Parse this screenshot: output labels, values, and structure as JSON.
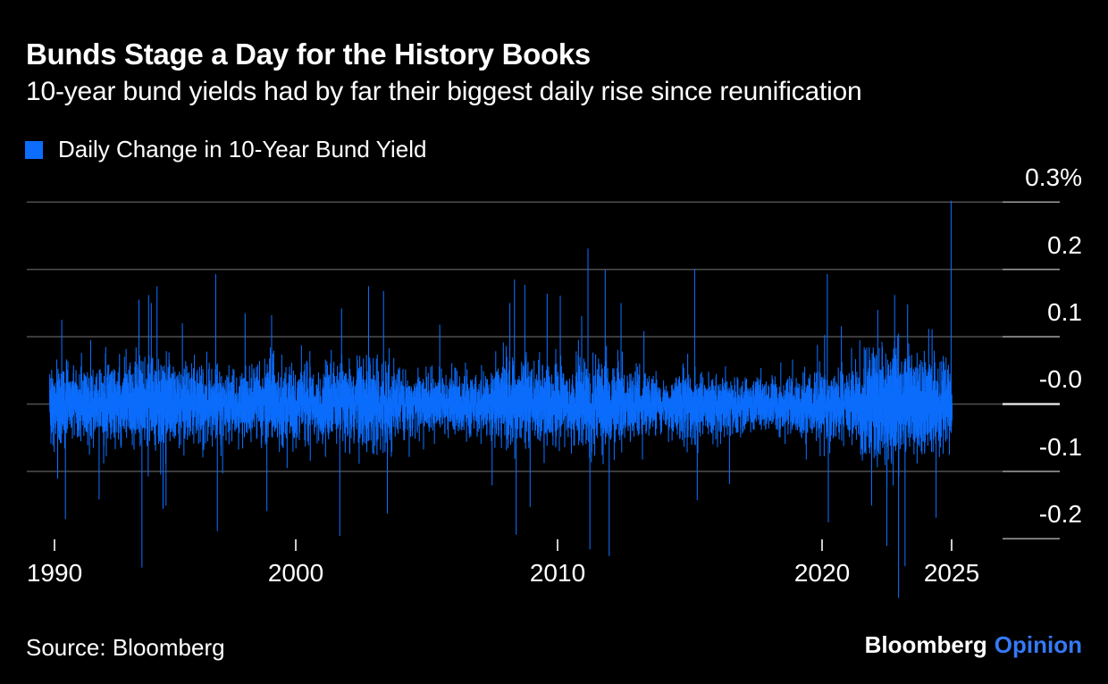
{
  "header": {
    "title": "Bunds Stage a Day for the History Books",
    "subtitle": "10-year bund yields had by far their biggest daily rise since reunification"
  },
  "legend": {
    "label": "Daily Change in 10-Year Bund Yield",
    "swatch_color": "#0c6dfc"
  },
  "footer": {
    "source": "Source: Bloomberg",
    "brand": "Bloomberg",
    "brand_suffix": "Opinion",
    "brand_suffix_color": "#3579f6"
  },
  "chart_data": {
    "type": "bar",
    "title": "Bunds Stage a Day for the History Books",
    "subtitle": "10-year bund yields had by far their biggest daily rise since reunification",
    "series": [
      {
        "name": "Daily Change in 10-Year Bund Yield",
        "color": "#0c6dfc"
      }
    ],
    "unit": "%",
    "ylim": [
      -0.32,
      0.34
    ],
    "y_tick_labels": [
      "0.3%",
      "0.2",
      "0.1",
      "-0.0",
      "-0.1",
      "-0.2"
    ],
    "y_tick_values": [
      0.3,
      0.2,
      0.1,
      0.0,
      -0.1,
      -0.2
    ],
    "y_gridline_values": [
      0.3,
      0.2,
      0.1,
      0.0,
      -0.1
    ],
    "x_ticks": [
      {
        "label": "1990",
        "year": 1990
      },
      {
        "label": "2000",
        "year": 2000
      },
      {
        "label": "2010",
        "year": 2010
      },
      {
        "label": "2020",
        "year": 2020
      },
      {
        "label": "2025",
        "year": 2025
      }
    ],
    "x_range_years": [
      1989.8,
      2025.02
    ],
    "points_per_year": 252,
    "seed": 911,
    "grid_on": true,
    "legend_position": "top-left",
    "max_move": {
      "year": 2025,
      "value": 0.302,
      "note": "biggest daily rise since reunification"
    },
    "min_move": {
      "year": 2023,
      "value": -0.287
    },
    "volatility_by_year": [
      [
        1990,
        0.028
      ],
      [
        1991,
        0.022
      ],
      [
        1992,
        0.026
      ],
      [
        1993,
        0.028
      ],
      [
        1994,
        0.033
      ],
      [
        1995,
        0.028
      ],
      [
        1996,
        0.026
      ],
      [
        1997,
        0.022
      ],
      [
        1998,
        0.024
      ],
      [
        1999,
        0.027
      ],
      [
        2000,
        0.025
      ],
      [
        2001,
        0.028
      ],
      [
        2002,
        0.03
      ],
      [
        2003,
        0.032
      ],
      [
        2004,
        0.024
      ],
      [
        2005,
        0.02
      ],
      [
        2006,
        0.021
      ],
      [
        2007,
        0.023
      ],
      [
        2008,
        0.034
      ],
      [
        2009,
        0.032
      ],
      [
        2010,
        0.028
      ],
      [
        2011,
        0.033
      ],
      [
        2012,
        0.03
      ],
      [
        2013,
        0.023
      ],
      [
        2014,
        0.019
      ],
      [
        2015,
        0.027
      ],
      [
        2016,
        0.022
      ],
      [
        2017,
        0.02
      ],
      [
        2018,
        0.019
      ],
      [
        2019,
        0.021
      ],
      [
        2020,
        0.027
      ],
      [
        2021,
        0.022
      ],
      [
        2022,
        0.045
      ],
      [
        2023,
        0.042
      ],
      [
        2024,
        0.034
      ],
      [
        2025,
        0.03
      ]
    ],
    "notable_moves": [
      [
        1990.3,
        0.125
      ],
      [
        1990.45,
        -0.17
      ],
      [
        1991.5,
        0.095
      ],
      [
        1993.5,
        0.155
      ],
      [
        1993.62,
        -0.242
      ],
      [
        1993.9,
        0.162
      ],
      [
        1994.25,
        0.175
      ],
      [
        1994.5,
        -0.155
      ],
      [
        1995.3,
        0.12
      ],
      [
        1996.68,
        0.193
      ],
      [
        1996.75,
        -0.188
      ],
      [
        1997.9,
        0.135
      ],
      [
        1998.8,
        -0.158
      ],
      [
        1999.0,
        0.132
      ],
      [
        2001.68,
        -0.195
      ],
      [
        2001.75,
        0.142
      ],
      [
        2002.78,
        0.175
      ],
      [
        2003.35,
        0.168
      ],
      [
        2003.5,
        -0.162
      ],
      [
        2005.5,
        0.118
      ],
      [
        2007.5,
        -0.12
      ],
      [
        2008.35,
        0.185
      ],
      [
        2008.42,
        -0.193
      ],
      [
        2008.75,
        0.177
      ],
      [
        2008.95,
        -0.152
      ],
      [
        2009.6,
        0.164
      ],
      [
        2010.1,
        0.161
      ],
      [
        2011.15,
        0.231
      ],
      [
        2011.22,
        -0.215
      ],
      [
        2011.8,
        0.2
      ],
      [
        2011.95,
        -0.225
      ],
      [
        2012.4,
        0.15
      ],
      [
        2015.18,
        0.201
      ],
      [
        2015.28,
        -0.142
      ],
      [
        2016.5,
        -0.118
      ],
      [
        2020.2,
        0.193
      ],
      [
        2020.24,
        -0.175
      ],
      [
        2022.15,
        0.14
      ],
      [
        2022.5,
        -0.21
      ],
      [
        2022.8,
        0.162
      ],
      [
        2022.95,
        -0.287
      ],
      [
        2023.2,
        -0.24
      ],
      [
        2023.3,
        0.148
      ],
      [
        2024.4,
        -0.168
      ],
      [
        2024.98,
        0.302
      ]
    ],
    "colors": {
      "background": "#000000",
      "bar": "#0c6dfc",
      "grid": "#4f4f4f",
      "axis_segment": "#9a9a9a",
      "zero_segment": "#f2f2f2",
      "tick": "#e0e0e0",
      "text": "#ffffff"
    }
  }
}
